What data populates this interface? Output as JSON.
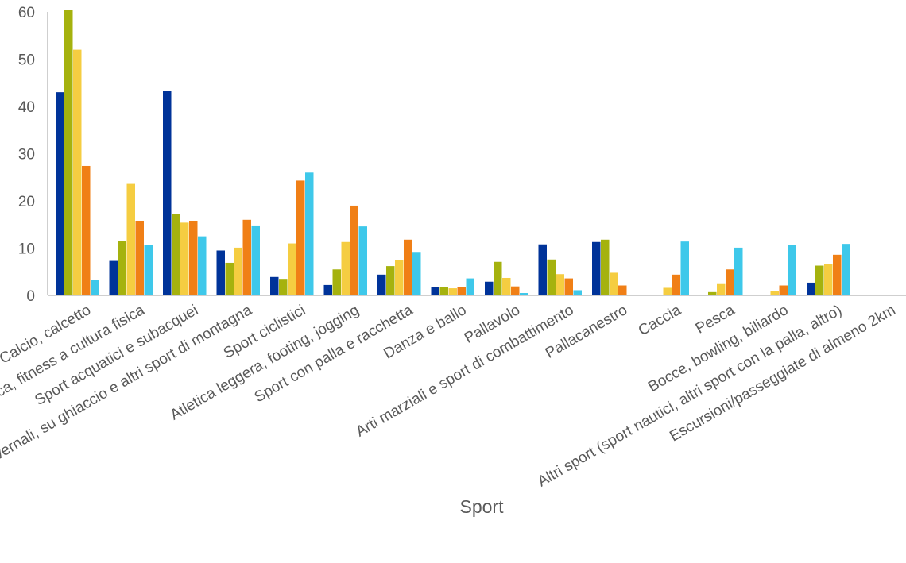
{
  "chart_data": {
    "type": "bar",
    "xlabel": "Sport",
    "ylabel": "",
    "ylim": [
      0,
      60
    ],
    "yticks": [
      "0",
      "10",
      "20",
      "30",
      "40",
      "50",
      "60"
    ],
    "grid": false,
    "legend": "none",
    "categories": [
      "Calcio, calcetto",
      "Ginnastica, aerobica, fitness a cultura fisica",
      "Sport acquatici e subacquei",
      "Sport invernali, su ghiaccio e altri sport di montagna",
      "Sport ciclistici",
      "Atletica leggera, footing, jogging",
      "Sport con palla e racchetta",
      "Danza e ballo",
      "Pallavolo",
      "Arti marziali e sport di combattimento",
      "Pallacanestro",
      "Caccia",
      "Pesca",
      "Bocce, bowling, biliardo",
      "Altri sport (sport nautici, altri sport con la palla, altro)",
      "Escursioni/passeggiate di almeno 2km"
    ],
    "series": [
      {
        "color": "#003399",
        "values": [
          43,
          7.3,
          43.3,
          9.5,
          3.9,
          2.2,
          4.4,
          1.7,
          2.9,
          10.8,
          11.3,
          0,
          0,
          0,
          2.7,
          0
        ]
      },
      {
        "color": "#a5b20e",
        "values": [
          60.5,
          11.5,
          17.2,
          6.9,
          3.5,
          5.5,
          6.2,
          1.8,
          7.1,
          7.6,
          11.8,
          0,
          0.7,
          0,
          6.3,
          0
        ]
      },
      {
        "color": "#f5cd41",
        "values": [
          52,
          23.6,
          15.4,
          10.1,
          11,
          11.3,
          7.4,
          1.5,
          3.7,
          4.5,
          4.8,
          1.6,
          2.4,
          0.9,
          6.7,
          0
        ]
      },
      {
        "color": "#f07f16",
        "values": [
          27.4,
          15.8,
          15.8,
          16,
          24.3,
          19,
          11.8,
          1.7,
          1.9,
          3.6,
          2.1,
          4.4,
          5.5,
          2.1,
          8.6,
          0
        ]
      },
      {
        "color": "#3ec8ea",
        "values": [
          3.2,
          10.7,
          12.5,
          14.8,
          26,
          14.6,
          9.2,
          3.6,
          0.5,
          1.1,
          0,
          11.4,
          10.1,
          10.6,
          10.9,
          0
        ]
      }
    ]
  }
}
